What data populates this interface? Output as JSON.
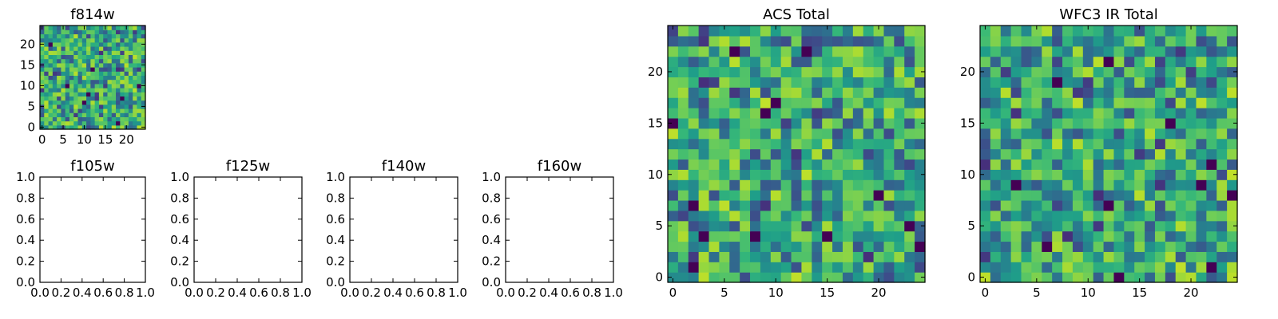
{
  "chart_data": [
    {
      "type": "heatmap",
      "title": "f814w",
      "xticks": [
        "0",
        "5",
        "10",
        "15",
        "20"
      ],
      "yticks": [
        "0",
        "5",
        "10",
        "15",
        "20"
      ],
      "xlim": [
        -0.5,
        24.5
      ],
      "ylim": [
        -0.5,
        24.5
      ],
      "grid": false,
      "colormap": "viridis",
      "seed": 814
    },
    {
      "type": "empty",
      "title": "f105w",
      "xticks": [
        "0.0",
        "0.2",
        "0.4",
        "0.6",
        "0.8",
        "1.0"
      ],
      "yticks": [
        "0.0",
        "0.2",
        "0.4",
        "0.6",
        "0.8",
        "1.0"
      ],
      "xlim": [
        0,
        1
      ],
      "ylim": [
        0,
        1
      ]
    },
    {
      "type": "empty",
      "title": "f125w",
      "xticks": [
        "0.0",
        "0.2",
        "0.4",
        "0.6",
        "0.8",
        "1.0"
      ],
      "yticks": [
        "0.0",
        "0.2",
        "0.4",
        "0.6",
        "0.8",
        "1.0"
      ],
      "xlim": [
        0,
        1
      ],
      "ylim": [
        0,
        1
      ]
    },
    {
      "type": "empty",
      "title": "f140w",
      "xticks": [
        "0.0",
        "0.2",
        "0.4",
        "0.6",
        "0.8",
        "1.0"
      ],
      "yticks": [
        "0.0",
        "0.2",
        "0.4",
        "0.6",
        "0.8",
        "1.0"
      ],
      "xlim": [
        0,
        1
      ],
      "ylim": [
        0,
        1
      ]
    },
    {
      "type": "empty",
      "title": "f160w",
      "xticks": [
        "0.0",
        "0.2",
        "0.4",
        "0.6",
        "0.8",
        "1.0"
      ],
      "yticks": [
        "0.0",
        "0.2",
        "0.4",
        "0.6",
        "0.8",
        "1.0"
      ],
      "xlim": [
        0,
        1
      ],
      "ylim": [
        0,
        1
      ]
    },
    {
      "type": "heatmap",
      "title": "ACS Total",
      "xticks": [
        "0",
        "5",
        "10",
        "15",
        "20"
      ],
      "yticks": [
        "0",
        "5",
        "10",
        "15",
        "20"
      ],
      "xlim": [
        -0.5,
        24.5
      ],
      "ylim": [
        -0.5,
        24.5
      ],
      "grid": false,
      "colormap": "viridis",
      "seed": 1001
    },
    {
      "type": "heatmap",
      "title": "WFC3 IR Total",
      "xticks": [
        "0",
        "5",
        "10",
        "15",
        "20"
      ],
      "yticks": [
        "0",
        "5",
        "10",
        "15",
        "20"
      ],
      "xlim": [
        -0.5,
        24.5
      ],
      "ylim": [
        -0.5,
        24.5
      ],
      "grid": false,
      "colormap": "viridis",
      "seed": 2003
    }
  ]
}
